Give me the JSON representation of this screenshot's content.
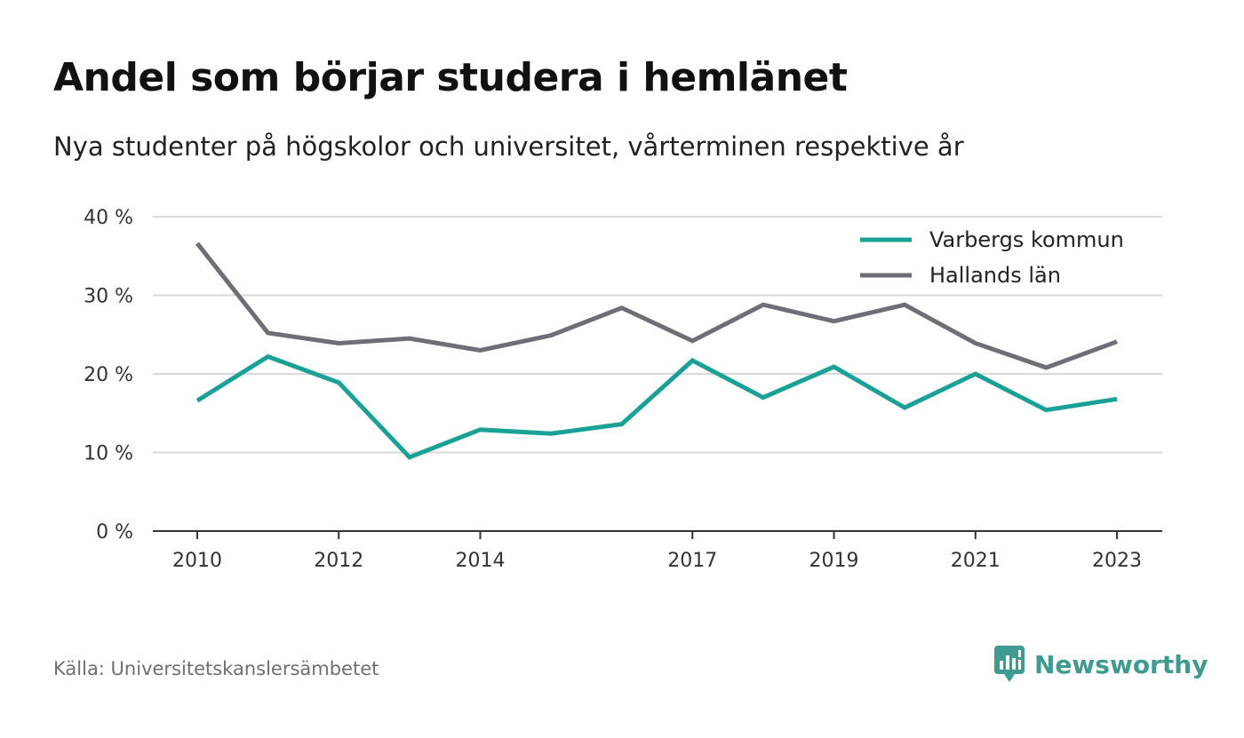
{
  "header": {
    "title": "Andel som börjar studera i hemlänet",
    "subtitle": "Nya studenter på högskolor och universitet, vårterminen respektive år"
  },
  "footer": {
    "source": "Källa: Universitetskanslersämbetet",
    "brand": "Newsworthy",
    "brand_icon": "newsworthy-logo-icon",
    "brand_color": "#3f9a8f"
  },
  "chart_data": {
    "type": "line",
    "x": [
      2010,
      2011,
      2012,
      2013,
      2014,
      2015,
      2016,
      2017,
      2018,
      2019,
      2020,
      2021,
      2022,
      2023
    ],
    "x_tick_labels": [
      "2010",
      "2012",
      "2014",
      "2017",
      "2019",
      "2021",
      "2023"
    ],
    "y_tick_labels": [
      "0 %",
      "10 %",
      "20 %",
      "30 %",
      "40 %"
    ],
    "y_ticks": [
      0,
      10,
      20,
      30,
      40
    ],
    "ylim": [
      0,
      40
    ],
    "grid": true,
    "legend_position": "top-right",
    "series": [
      {
        "name": "Varbergs kommun",
        "color": "#1aa197",
        "values": [
          16.6,
          22.2,
          18.9,
          9.4,
          12.9,
          12.4,
          13.6,
          21.7,
          17.0,
          20.9,
          15.7,
          20.0,
          15.4,
          16.8
        ]
      },
      {
        "name": "Hallands län",
        "color": "#6f6e76",
        "values": [
          36.6,
          25.2,
          23.9,
          24.5,
          23.0,
          24.9,
          28.4,
          24.2,
          28.8,
          26.7,
          28.8,
          23.9,
          20.8,
          24.1
        ]
      }
    ]
  }
}
